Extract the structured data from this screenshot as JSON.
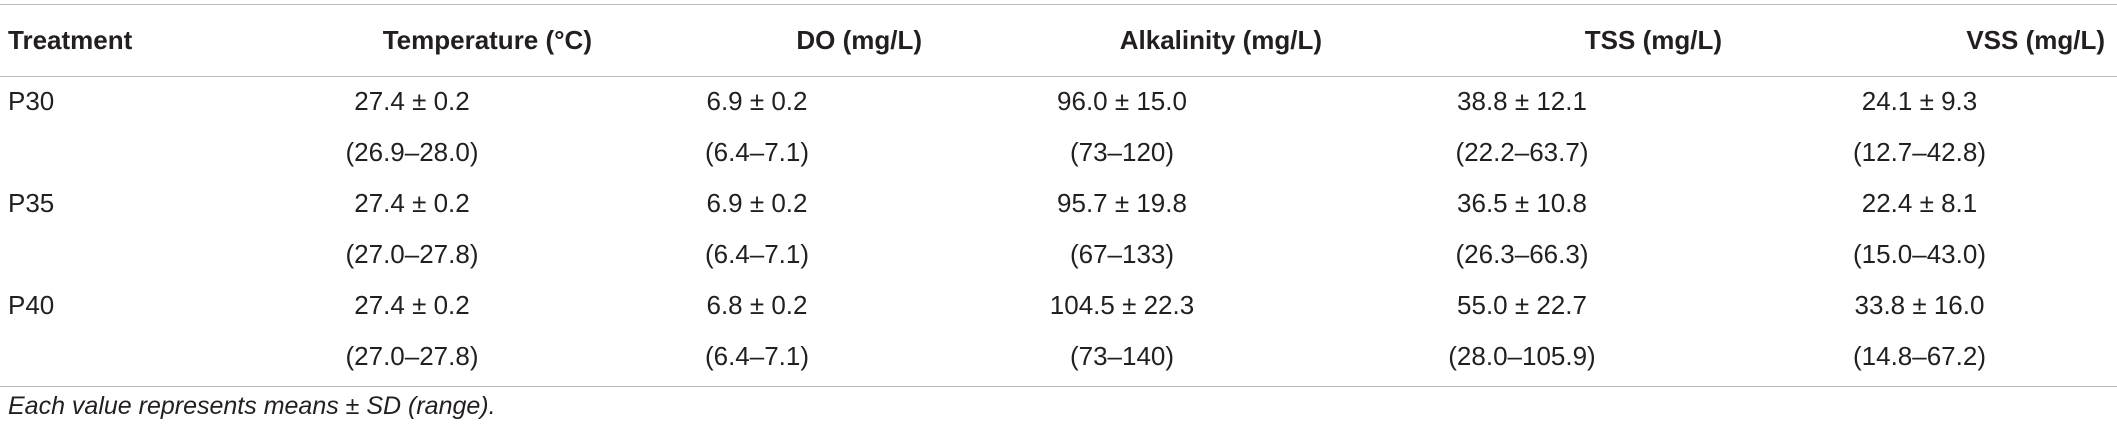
{
  "table": {
    "headers": [
      "Treatment",
      "Temperature (°C)",
      "DO (mg/L)",
      "Alkalinity (mg/L)",
      "TSS (mg/L)",
      "VSS (mg/L)"
    ],
    "rows": [
      {
        "treatment": "P30",
        "mean": [
          "27.4 ± 0.2",
          "6.9 ± 0.2",
          "96.0 ± 15.0",
          "38.8 ± 12.1",
          "24.1 ± 9.3"
        ],
        "range": [
          "(26.9–28.0)",
          "(6.4–7.1)",
          "(73–120)",
          "(22.2–63.7)",
          "(12.7–42.8)"
        ]
      },
      {
        "treatment": "P35",
        "mean": [
          "27.4 ± 0.2",
          "6.9 ± 0.2",
          "95.7 ± 19.8",
          "36.5 ± 10.8",
          "22.4 ± 8.1"
        ],
        "range": [
          "(27.0–27.8)",
          "(6.4–7.1)",
          "(67–133)",
          "(26.3–66.3)",
          "(15.0–43.0)"
        ]
      },
      {
        "treatment": "P40",
        "mean": [
          "27.4 ± 0.2",
          "6.8 ± 0.2",
          "104.5 ± 22.3",
          "55.0 ± 22.7",
          "33.8 ± 16.0"
        ],
        "range": [
          "(27.0–27.8)",
          "(6.4–7.1)",
          "(73–140)",
          "(28.0–105.9)",
          "(14.8–67.2)"
        ]
      }
    ]
  },
  "footnote": "Each value represents means ± SD (range)."
}
